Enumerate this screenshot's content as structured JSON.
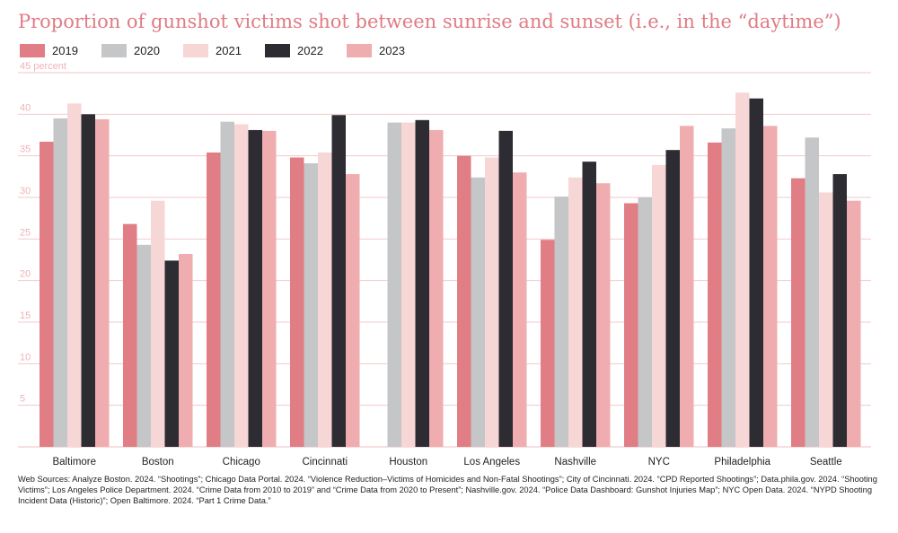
{
  "title": "Proportion of gunshot victims shot between sunrise and sunset (i.e., in the “daytime”)",
  "source": "Web Sources: Analyze Boston. 2024. “Shootings”; Chicago Data Portal. 2024. “Violence Reduction–Victims of Homicides and Non-Fatal Shootings”; City of Cincinnati. 2024. “CPD Reported Shootings”; Data.phila.gov. 2024. “Shooting Victims”; Los Angeles Police Department. 2024. “Crime Data from 2010 to 2019” and “Crime Data from 2020 to Present”; Nashville.gov. 2024. “Police Data Dashboard: Gunshot Injuries Map”; NYC Open Data. 2024. “NYPD Shooting Incident Data (Historic)”; Open Baltimore. 2024. “Part 1 Crime Data.”",
  "colors": {
    "title": "#e07b83",
    "grid": "#f2c9cc",
    "axis_label": "#f0b3b7",
    "tick": "#444444"
  },
  "chart_data": {
    "type": "bar",
    "title": "Proportion of gunshot victims shot between sunrise and sunset (i.e., in the “daytime”)",
    "ylabel": "percent",
    "ylim": [
      0,
      45
    ],
    "yticks": [
      5,
      10,
      15,
      20,
      25,
      30,
      35,
      40,
      45
    ],
    "ytick_labels": [
      "5",
      "10",
      "15",
      "20",
      "25",
      "30",
      "35",
      "40",
      "45 percent"
    ],
    "grid": true,
    "legend": "top-left",
    "categories": [
      "Baltimore",
      "Boston",
      "Chicago",
      "Cincinnati",
      "Houston",
      "Los Angeles",
      "Nashville",
      "NYC",
      "Philadelphia",
      "Seattle"
    ],
    "series": [
      {
        "name": "2019",
        "color": "#e07d85",
        "values": [
          36.7,
          26.8,
          35.4,
          34.8,
          null,
          35.0,
          24.9,
          29.3,
          36.6,
          32.3
        ]
      },
      {
        "name": "2020",
        "color": "#c5c6c8",
        "values": [
          39.5,
          24.3,
          39.1,
          34.1,
          39.0,
          32.4,
          30.1,
          30.0,
          38.3,
          37.2
        ]
      },
      {
        "name": "2021",
        "color": "#f7d6d6",
        "values": [
          41.3,
          29.6,
          38.8,
          35.4,
          39.0,
          34.8,
          32.4,
          33.9,
          42.6,
          30.6
        ]
      },
      {
        "name": "2022",
        "color": "#2d2c33",
        "values": [
          40.0,
          22.4,
          38.1,
          39.9,
          39.3,
          38.0,
          34.3,
          35.7,
          41.9,
          32.8
        ]
      },
      {
        "name": "2023",
        "color": "#efadb0",
        "values": [
          39.4,
          23.2,
          38.0,
          32.8,
          38.1,
          33.0,
          31.7,
          38.6,
          38.6,
          29.6
        ]
      }
    ]
  }
}
